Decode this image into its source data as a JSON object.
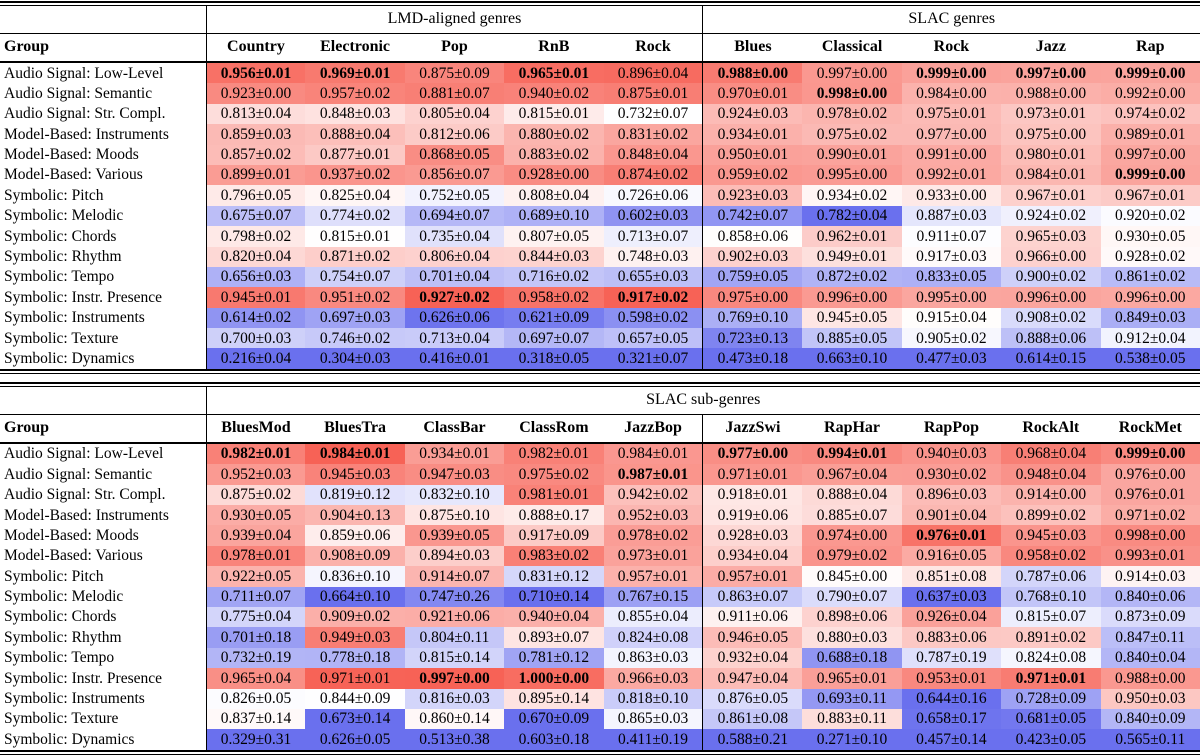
{
  "colors": {
    "heat_max_red": "#f76256",
    "heat_min_blue": "#6a70ee",
    "rule_black": "#000000",
    "background_white": "#ffffff"
  },
  "tables": [
    {
      "name": "genres-table",
      "spanners": [
        {
          "label": "LMD-aligned genres",
          "span": 5
        },
        {
          "label": "SLAC genres",
          "span": 5
        }
      ],
      "group_column_header": "Group",
      "columns": [
        "Country",
        "Electronic",
        "Pop",
        "RnB",
        "Rock",
        "Blues",
        "Classical",
        "Rock",
        "Jazz",
        "Rap"
      ],
      "rows": [
        {
          "label": "Audio Signal: Low-Level",
          "cells": [
            "0.956±0.01",
            "0.969±0.01",
            "0.875±0.09",
            "0.965±0.01",
            "0.896±0.04",
            "0.988±0.00",
            "0.997±0.00",
            "0.999±0.00",
            "0.997±0.00",
            "0.999±0.00"
          ]
        },
        {
          "label": "Audio Signal: Semantic",
          "cells": [
            "0.923±0.00",
            "0.957±0.02",
            "0.881±0.07",
            "0.940±0.02",
            "0.875±0.01",
            "0.970±0.01",
            "0.998±0.00",
            "0.984±0.00",
            "0.988±0.00",
            "0.992±0.00"
          ]
        },
        {
          "label": "Audio Signal: Str. Compl.",
          "cells": [
            "0.813±0.04",
            "0.848±0.03",
            "0.805±0.04",
            "0.815±0.01",
            "0.732±0.07",
            "0.924±0.03",
            "0.978±0.02",
            "0.975±0.01",
            "0.973±0.01",
            "0.974±0.02"
          ]
        },
        {
          "label": "Model-Based: Instruments",
          "cells": [
            "0.859±0.03",
            "0.888±0.04",
            "0.812±0.06",
            "0.880±0.02",
            "0.831±0.02",
            "0.934±0.01",
            "0.975±0.02",
            "0.977±0.00",
            "0.975±0.00",
            "0.989±0.01"
          ]
        },
        {
          "label": "Model-Based: Moods",
          "cells": [
            "0.857±0.02",
            "0.877±0.01",
            "0.868±0.05",
            "0.883±0.02",
            "0.848±0.04",
            "0.950±0.01",
            "0.990±0.01",
            "0.991±0.00",
            "0.980±0.01",
            "0.997±0.00"
          ]
        },
        {
          "label": "Model-Based: Various",
          "cells": [
            "0.899±0.01",
            "0.937±0.02",
            "0.856±0.07",
            "0.928±0.00",
            "0.874±0.02",
            "0.959±0.02",
            "0.995±0.00",
            "0.992±0.01",
            "0.984±0.01",
            "0.999±0.00"
          ]
        },
        {
          "label": "Symbolic: Pitch",
          "cells": [
            "0.796±0.05",
            "0.825±0.04",
            "0.752±0.05",
            "0.808±0.04",
            "0.726±0.06",
            "0.923±0.03",
            "0.934±0.02",
            "0.933±0.00",
            "0.967±0.01",
            "0.967±0.01"
          ]
        },
        {
          "label": "Symbolic: Melodic",
          "cells": [
            "0.675±0.07",
            "0.774±0.02",
            "0.694±0.07",
            "0.689±0.10",
            "0.602±0.03",
            "0.742±0.07",
            "0.782±0.04",
            "0.887±0.03",
            "0.924±0.02",
            "0.920±0.02"
          ]
        },
        {
          "label": "Symbolic: Chords",
          "cells": [
            "0.798±0.02",
            "0.815±0.01",
            "0.735±0.04",
            "0.807±0.05",
            "0.713±0.07",
            "0.858±0.06",
            "0.962±0.01",
            "0.911±0.07",
            "0.965±0.03",
            "0.930±0.05"
          ]
        },
        {
          "label": "Symbolic: Rhythm",
          "cells": [
            "0.820±0.04",
            "0.871±0.02",
            "0.806±0.04",
            "0.844±0.03",
            "0.748±0.03",
            "0.902±0.03",
            "0.949±0.01",
            "0.917±0.03",
            "0.966±0.00",
            "0.928±0.02"
          ]
        },
        {
          "label": "Symbolic: Tempo",
          "cells": [
            "0.656±0.03",
            "0.754±0.07",
            "0.701±0.04",
            "0.716±0.02",
            "0.655±0.03",
            "0.759±0.05",
            "0.872±0.02",
            "0.833±0.05",
            "0.900±0.02",
            "0.861±0.02"
          ]
        },
        {
          "label": "Symbolic: Instr. Presence",
          "cells": [
            "0.945±0.01",
            "0.951±0.02",
            "0.927±0.02",
            "0.958±0.02",
            "0.917±0.02",
            "0.975±0.00",
            "0.996±0.00",
            "0.995±0.00",
            "0.996±0.00",
            "0.996±0.00"
          ]
        },
        {
          "label": "Symbolic: Instruments",
          "cells": [
            "0.614±0.02",
            "0.697±0.03",
            "0.626±0.06",
            "0.621±0.09",
            "0.598±0.02",
            "0.769±0.10",
            "0.945±0.05",
            "0.915±0.04",
            "0.908±0.02",
            "0.849±0.03"
          ]
        },
        {
          "label": "Symbolic: Texture",
          "cells": [
            "0.700±0.03",
            "0.746±0.02",
            "0.713±0.04",
            "0.697±0.07",
            "0.657±0.05",
            "0.723±0.13",
            "0.885±0.05",
            "0.905±0.02",
            "0.888±0.06",
            "0.912±0.04"
          ]
        },
        {
          "label": "Symbolic: Dynamics",
          "cells": [
            "0.216±0.04",
            "0.304±0.03",
            "0.416±0.01",
            "0.318±0.05",
            "0.321±0.07",
            "0.473±0.18",
            "0.663±0.10",
            "0.477±0.03",
            "0.614±0.15",
            "0.538±0.05"
          ]
        }
      ]
    },
    {
      "name": "subgenres-table",
      "spanners": [
        {
          "label": "SLAC sub-genres",
          "span": 10
        }
      ],
      "group_column_header": "Group",
      "columns": [
        "BluesMod",
        "BluesTra",
        "ClassBar",
        "ClassRom",
        "JazzBop",
        "JazzSwi",
        "RapHar",
        "RapPop",
        "RockAlt",
        "RockMet"
      ],
      "rows": [
        {
          "label": "Audio Signal: Low-Level",
          "cells": [
            "0.982±0.01",
            "0.984±0.01",
            "0.934±0.01",
            "0.982±0.01",
            "0.984±0.01",
            "0.977±0.00",
            "0.994±0.01",
            "0.940±0.03",
            "0.968±0.04",
            "0.999±0.00"
          ]
        },
        {
          "label": "Audio Signal: Semantic",
          "cells": [
            "0.952±0.03",
            "0.945±0.03",
            "0.947±0.03",
            "0.975±0.02",
            "0.987±0.01",
            "0.971±0.01",
            "0.967±0.04",
            "0.930±0.02",
            "0.948±0.04",
            "0.976±0.00"
          ]
        },
        {
          "label": "Audio Signal: Str. Compl.",
          "cells": [
            "0.875±0.02",
            "0.819±0.12",
            "0.832±0.10",
            "0.981±0.01",
            "0.942±0.02",
            "0.918±0.01",
            "0.888±0.04",
            "0.896±0.03",
            "0.914±0.00",
            "0.976±0.01"
          ]
        },
        {
          "label": "Model-Based: Instruments",
          "cells": [
            "0.930±0.05",
            "0.904±0.13",
            "0.875±0.10",
            "0.888±0.17",
            "0.952±0.03",
            "0.919±0.06",
            "0.885±0.07",
            "0.901±0.04",
            "0.899±0.02",
            "0.971±0.02"
          ]
        },
        {
          "label": "Model-Based: Moods",
          "cells": [
            "0.939±0.04",
            "0.859±0.06",
            "0.939±0.05",
            "0.917±0.09",
            "0.978±0.02",
            "0.928±0.03",
            "0.974±0.00",
            "0.976±0.01",
            "0.945±0.03",
            "0.998±0.00"
          ]
        },
        {
          "label": "Model-Based: Various",
          "cells": [
            "0.978±0.01",
            "0.908±0.09",
            "0.894±0.03",
            "0.983±0.02",
            "0.973±0.01",
            "0.934±0.04",
            "0.979±0.02",
            "0.916±0.05",
            "0.958±0.02",
            "0.993±0.01"
          ]
        },
        {
          "label": "Symbolic: Pitch",
          "cells": [
            "0.922±0.05",
            "0.836±0.10",
            "0.914±0.07",
            "0.831±0.12",
            "0.957±0.01",
            "0.957±0.01",
            "0.845±0.00",
            "0.851±0.08",
            "0.787±0.06",
            "0.914±0.03"
          ]
        },
        {
          "label": "Symbolic: Melodic",
          "cells": [
            "0.711±0.07",
            "0.664±0.10",
            "0.747±0.26",
            "0.710±0.14",
            "0.767±0.15",
            "0.863±0.07",
            "0.790±0.07",
            "0.637±0.03",
            "0.768±0.10",
            "0.840±0.06"
          ]
        },
        {
          "label": "Symbolic: Chords",
          "cells": [
            "0.775±0.04",
            "0.909±0.02",
            "0.921±0.06",
            "0.940±0.04",
            "0.855±0.04",
            "0.911±0.06",
            "0.898±0.06",
            "0.926±0.04",
            "0.815±0.07",
            "0.873±0.09"
          ]
        },
        {
          "label": "Symbolic: Rhythm",
          "cells": [
            "0.701±0.18",
            "0.949±0.03",
            "0.804±0.11",
            "0.893±0.07",
            "0.824±0.08",
            "0.946±0.05",
            "0.880±0.03",
            "0.883±0.06",
            "0.891±0.02",
            "0.847±0.11"
          ]
        },
        {
          "label": "Symbolic: Tempo",
          "cells": [
            "0.732±0.19",
            "0.778±0.18",
            "0.815±0.14",
            "0.781±0.12",
            "0.863±0.03",
            "0.932±0.04",
            "0.688±0.18",
            "0.787±0.19",
            "0.824±0.08",
            "0.840±0.04"
          ]
        },
        {
          "label": "Symbolic: Instr. Presence",
          "cells": [
            "0.965±0.04",
            "0.971±0.01",
            "0.997±0.00",
            "1.000±0.00",
            "0.966±0.03",
            "0.947±0.04",
            "0.965±0.01",
            "0.953±0.01",
            "0.971±0.01",
            "0.988±0.00"
          ]
        },
        {
          "label": "Symbolic: Instruments",
          "cells": [
            "0.826±0.05",
            "0.844±0.09",
            "0.816±0.03",
            "0.895±0.14",
            "0.818±0.10",
            "0.876±0.05",
            "0.693±0.11",
            "0.644±0.16",
            "0.728±0.09",
            "0.950±0.03"
          ]
        },
        {
          "label": "Symbolic: Texture",
          "cells": [
            "0.837±0.14",
            "0.673±0.14",
            "0.860±0.14",
            "0.670±0.09",
            "0.865±0.03",
            "0.861±0.08",
            "0.883±0.11",
            "0.658±0.17",
            "0.681±0.05",
            "0.840±0.09"
          ]
        },
        {
          "label": "Symbolic: Dynamics",
          "cells": [
            "0.329±0.31",
            "0.626±0.05",
            "0.513±0.38",
            "0.603±0.18",
            "0.411±0.19",
            "0.588±0.21",
            "0.271±0.10",
            "0.457±0.14",
            "0.423±0.05",
            "0.565±0.11"
          ]
        }
      ]
    }
  ]
}
